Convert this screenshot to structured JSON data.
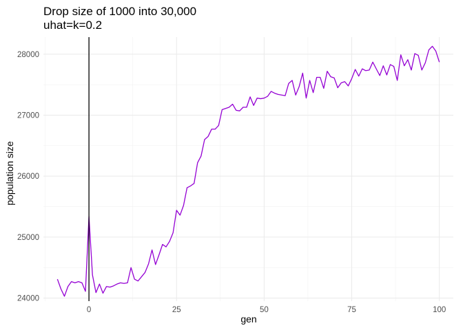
{
  "chart_data": {
    "type": "line",
    "title_lines": [
      "Drop size of 1000 into 30,000",
      "uhat=k=0.2"
    ],
    "xlabel": "gen",
    "ylabel": "population size",
    "xlim": [
      -13,
      104
    ],
    "ylim": [
      23950,
      28280
    ],
    "x_ticks": [
      0,
      25,
      50,
      75,
      100
    ],
    "x_minor_ticks": [
      -12.5,
      12.5,
      37.5,
      62.5,
      87.5
    ],
    "y_ticks": [
      24000,
      25000,
      26000,
      27000,
      28000
    ],
    "y_minor_ticks": [
      24500,
      25500,
      26500,
      27500
    ],
    "grid": true,
    "vline_x": 0,
    "vline_color": "#000000",
    "series": [
      {
        "color": "#9400D3",
        "x": [
          -9,
          -8,
          -7,
          -6,
          -5,
          -4,
          -3,
          -2,
          -1,
          0,
          1,
          2,
          3,
          4,
          5,
          6,
          7,
          8,
          9,
          10,
          11,
          12,
          13,
          14,
          15,
          16,
          17,
          18,
          19,
          20,
          21,
          22,
          23,
          24,
          25,
          26,
          27,
          28,
          29,
          30,
          31,
          32,
          33,
          34,
          35,
          36,
          37,
          38,
          39,
          40,
          41,
          42,
          43,
          44,
          45,
          46,
          47,
          48,
          49,
          50,
          51,
          52,
          53,
          54,
          55,
          56,
          57,
          58,
          59,
          60,
          61,
          62,
          63,
          64,
          65,
          66,
          67,
          68,
          69,
          70,
          71,
          72,
          73,
          74,
          75,
          76,
          77,
          78,
          79,
          80,
          81,
          82,
          83,
          84,
          85,
          86,
          87,
          88,
          89,
          90,
          91,
          92,
          93,
          94,
          95,
          96,
          97,
          98,
          99,
          100
        ],
        "y": [
          24310,
          24150,
          24030,
          24190,
          24270,
          24250,
          24270,
          24250,
          24110,
          25340,
          24380,
          24090,
          24230,
          24080,
          24190,
          24180,
          24200,
          24230,
          24250,
          24240,
          24250,
          24500,
          24310,
          24280,
          24350,
          24420,
          24560,
          24790,
          24550,
          24710,
          24880,
          24840,
          24930,
          25070,
          25440,
          25360,
          25520,
          25810,
          25840,
          25880,
          26220,
          26330,
          26600,
          26650,
          26770,
          26770,
          26830,
          27090,
          27110,
          27130,
          27180,
          27080,
          27070,
          27130,
          27130,
          27300,
          27160,
          27280,
          27270,
          27280,
          27310,
          27390,
          27360,
          27340,
          27330,
          27320,
          27520,
          27570,
          27330,
          27470,
          27690,
          27280,
          27570,
          27370,
          27620,
          27620,
          27440,
          27720,
          27630,
          27610,
          27450,
          27530,
          27550,
          27480,
          27600,
          27750,
          27640,
          27760,
          27730,
          27740,
          27870,
          27760,
          27650,
          27810,
          27660,
          27830,
          27800,
          27570,
          27990,
          27810,
          27910,
          27740,
          28010,
          27980,
          27740,
          27860,
          28070,
          28130,
          28050,
          27870
        ]
      }
    ]
  }
}
